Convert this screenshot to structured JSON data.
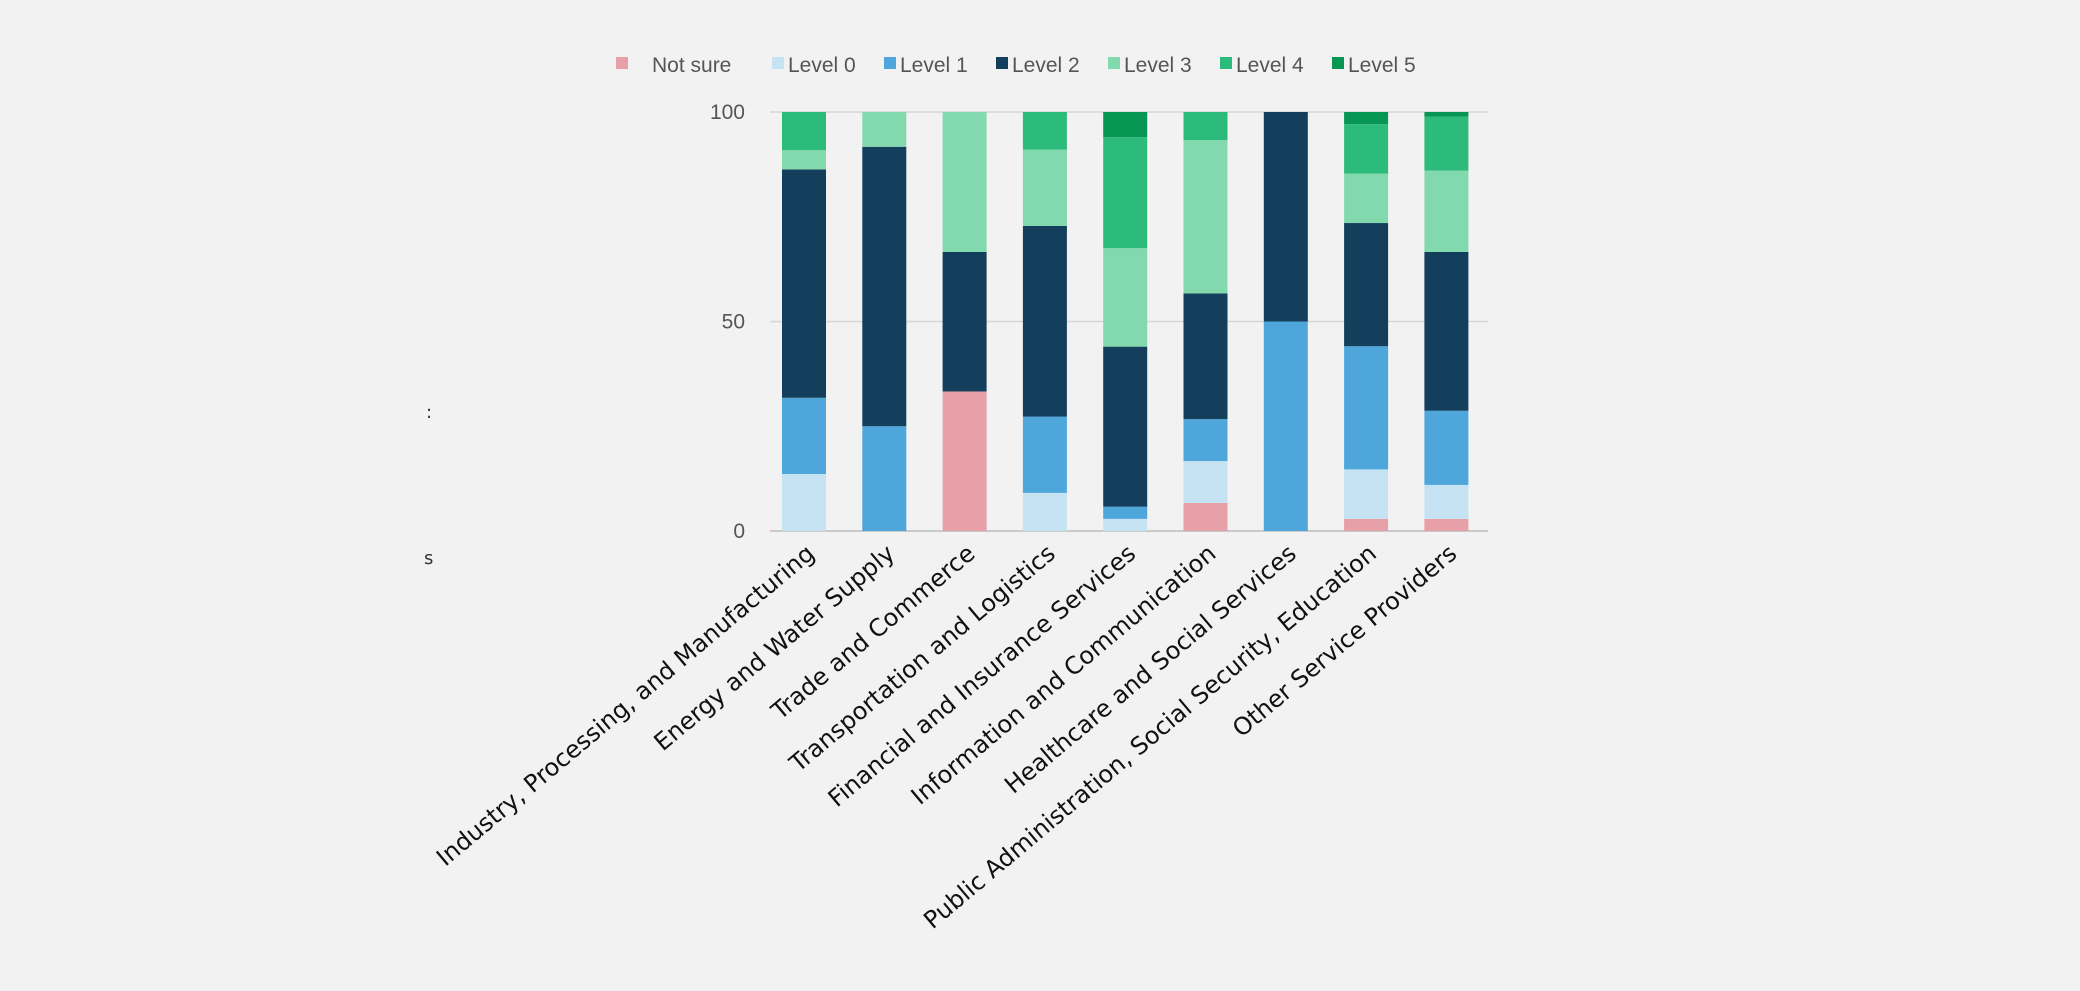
{
  "chart_data": {
    "type": "bar",
    "stacked": true,
    "title": "",
    "xlabel": "",
    "ylabel": "",
    "ylim": [
      0,
      100
    ],
    "yticks": [
      0,
      50,
      100
    ],
    "grid": true,
    "legend_position": "top",
    "categories": [
      "Industry, Processing, and Manufacturing",
      "Energy and Water Supply",
      "Trade and Commerce",
      "Transportation and Logistics",
      "Financial and Insurance Services",
      "Information and Communication",
      "Healthcare and Social Services",
      "Public Administration, Social Security, Education",
      "Other Service Providers"
    ],
    "series": [
      {
        "name": "Not sure",
        "color": "#e8a0a8",
        "values": [
          0,
          0,
          33.3,
          0,
          0,
          6.7,
          0,
          2.9,
          2.9
        ]
      },
      {
        "name": "Level 0",
        "color": "#c5e3f2",
        "values": [
          13.6,
          0,
          0,
          9.1,
          2.9,
          10,
          0,
          11.8,
          8.1
        ]
      },
      {
        "name": "Level 1",
        "color": "#4ea6db",
        "values": [
          18.2,
          25,
          0,
          18.2,
          2.9,
          10,
          50,
          29.4,
          17.7
        ]
      },
      {
        "name": "Level 2",
        "color": "#143f5c",
        "values": [
          54.5,
          66.7,
          33.3,
          45.5,
          38.2,
          30,
          50,
          29.4,
          37.9
        ]
      },
      {
        "name": "Level 3",
        "color": "#82d9ad",
        "values": [
          4.6,
          8.3,
          33.4,
          18.2,
          23.5,
          36.6,
          0,
          11.8,
          19.4
        ]
      },
      {
        "name": "Level 4",
        "color": "#2dbb7c",
        "values": [
          9.1,
          0,
          0,
          9.0,
          26.5,
          6.7,
          0,
          11.8,
          12.9
        ]
      },
      {
        "name": "Level 5",
        "color": "#069552",
        "values": [
          0,
          0,
          0,
          0,
          6.0,
          0,
          0,
          2.9,
          1.1
        ]
      }
    ]
  },
  "stray_marks": [
    ":",
    "s"
  ]
}
